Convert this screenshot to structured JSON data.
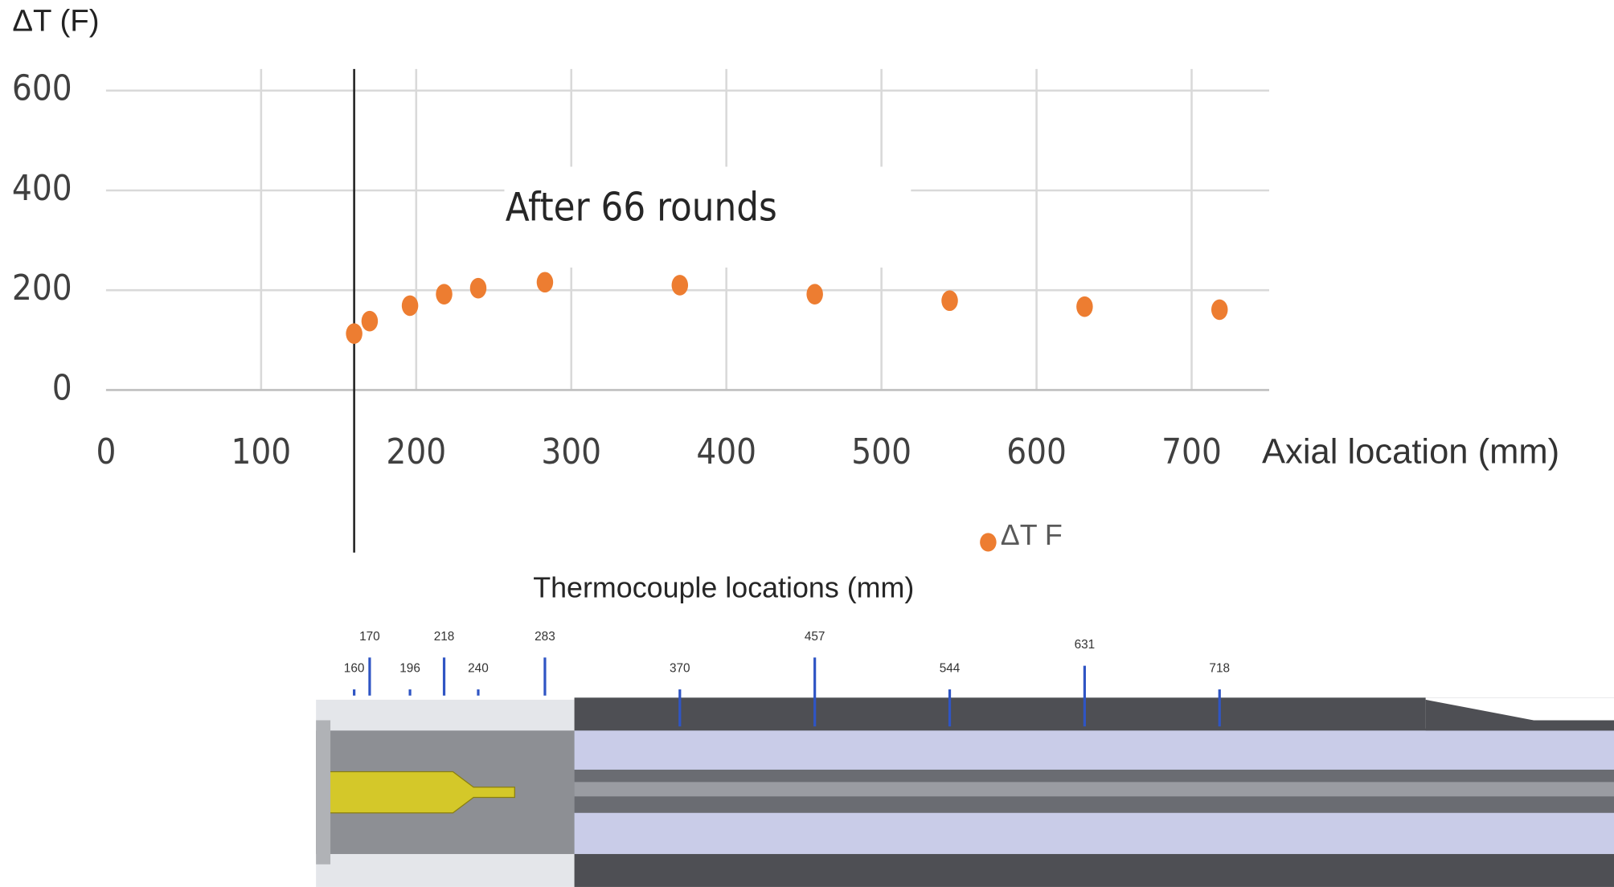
{
  "chart_data": {
    "type": "scatter",
    "y_label": "ΔT (F)",
    "x_label": "Axial location (mm)",
    "annotation": "After 66 rounds",
    "series": [
      {
        "name": "ΔT F",
        "color": "#ed7d31",
        "x": [
          160,
          170,
          196,
          218,
          240,
          283,
          370,
          457,
          544,
          631,
          718
        ],
        "values": [
          113,
          138,
          169,
          192,
          204,
          216,
          210,
          192,
          179,
          167,
          161
        ]
      }
    ],
    "xlim": [
      0,
      750
    ],
    "xticks": [
      0,
      100,
      200,
      300,
      400,
      500,
      600,
      700
    ],
    "ylim": [
      0,
      600
    ],
    "yticks": [
      0,
      200,
      400,
      600
    ],
    "grid": true,
    "marker_line": 160
  },
  "diagram": {
    "title": "Thermocouple locations (mm)",
    "locations": [
      160,
      170,
      196,
      218,
      240,
      283,
      370,
      457,
      544,
      631,
      718
    ]
  }
}
